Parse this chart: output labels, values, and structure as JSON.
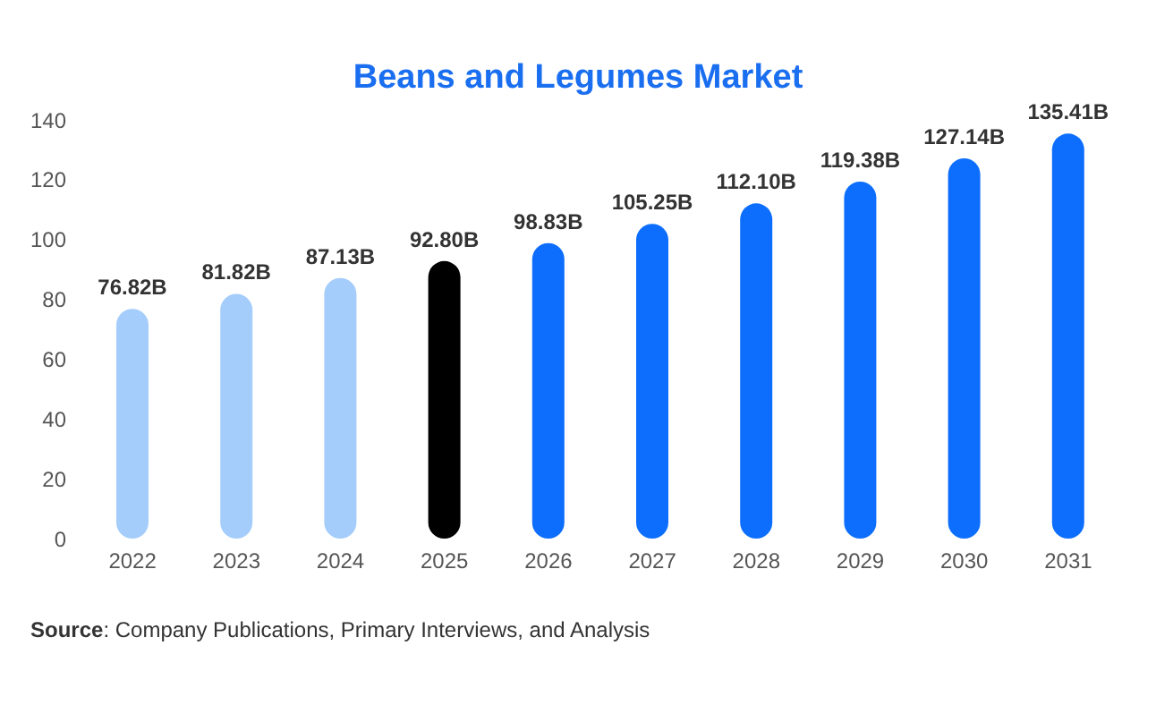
{
  "chart_data": {
    "type": "bar",
    "title": "Beans and Legumes Market",
    "categories": [
      "2022",
      "2023",
      "2024",
      "2025",
      "2026",
      "2027",
      "2028",
      "2029",
      "2030",
      "2031"
    ],
    "values": [
      76.82,
      81.82,
      87.13,
      92.8,
      98.83,
      105.25,
      112.1,
      119.38,
      127.14,
      135.41
    ],
    "value_labels": [
      "76.82B",
      "81.82B",
      "87.13B",
      "92.80B",
      "98.83B",
      "105.25B",
      "112.10B",
      "119.38B",
      "127.14B",
      "135.41B"
    ],
    "colors": [
      "#a5cdfb",
      "#a5cdfb",
      "#a5cdfb",
      "#000000",
      "#0d6efd",
      "#0d6efd",
      "#0d6efd",
      "#0d6efd",
      "#0d6efd",
      "#0d6efd"
    ],
    "ylim": [
      0,
      140
    ],
    "yticks": [
      0,
      20,
      40,
      60,
      80,
      100,
      120,
      140
    ],
    "grid": false,
    "legend": false,
    "annotations": [
      "Source: Company Publications, Primary Interviews, and Analysis"
    ]
  }
}
